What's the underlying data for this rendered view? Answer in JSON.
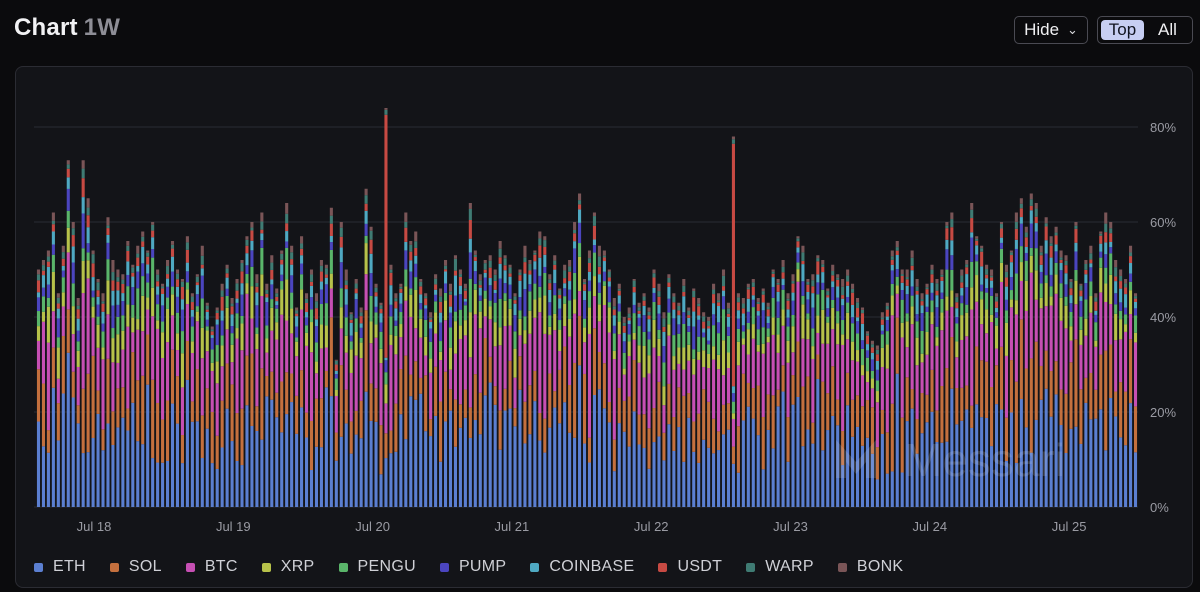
{
  "header": {
    "title": "Chart",
    "range": "1W",
    "hide_label": "Hide",
    "toggle": {
      "options": [
        "Top",
        "All"
      ],
      "selected": "Top"
    }
  },
  "watermark": "Messari",
  "colors": {
    "ETH": "#5b7fd1",
    "SOL": "#c4703e",
    "BTC": "#c64fb3",
    "XRP": "#b7c24a",
    "PENGU": "#5ab56a",
    "PUMP": "#4b45bf",
    "COINBASE": "#4fa9c2",
    "USDT": "#c74a43",
    "WARP": "#3f7b73",
    "BONK": "#7a5557"
  },
  "chart_data": {
    "type": "bar",
    "stacked": true,
    "x_ticks": [
      "Jul 18",
      "Jul 19",
      "Jul 20",
      "Jul 21",
      "Jul 22",
      "Jul 23",
      "Jul 24",
      "Jul 25"
    ],
    "y_ticks": [
      "0%",
      "20%",
      "40%",
      "60%",
      "80%"
    ],
    "ylim": [
      0,
      85
    ],
    "grid": "horizontal",
    "legend_position": "bottom",
    "series_order": [
      "ETH",
      "SOL",
      "BTC",
      "XRP",
      "PENGU",
      "PUMP",
      "COINBASE",
      "USDT",
      "WARP",
      "BONK"
    ],
    "bucket_hours": 1,
    "totals": [
      50,
      52,
      54,
      62,
      45,
      55,
      73,
      60,
      44,
      73,
      65,
      54,
      48,
      45,
      61,
      52,
      50,
      49,
      56,
      51,
      55,
      58,
      54,
      60,
      50,
      47,
      52,
      56,
      50,
      48,
      57,
      45,
      49,
      55,
      43,
      38,
      42,
      47,
      51,
      44,
      48,
      52,
      57,
      60,
      49,
      62,
      47,
      53,
      46,
      54,
      64,
      55,
      42,
      57,
      45,
      50,
      45,
      52,
      51,
      63,
      31,
      60,
      50,
      41,
      48,
      42,
      67,
      59,
      47,
      43,
      84,
      51,
      45,
      47,
      62,
      56,
      58,
      48,
      45,
      41,
      49,
      46,
      52,
      47,
      53,
      50,
      47,
      64,
      54,
      49,
      52,
      53,
      50,
      56,
      53,
      51,
      45,
      50,
      55,
      52,
      54,
      58,
      57,
      49,
      53,
      46,
      51,
      52,
      60,
      66,
      48,
      54,
      62,
      55,
      54,
      50,
      44,
      47,
      40,
      42,
      48,
      43,
      45,
      42,
      50,
      47,
      41,
      49,
      45,
      43,
      48,
      42,
      46,
      44,
      41,
      40,
      47,
      45,
      50,
      43,
      78,
      45,
      44,
      47,
      48,
      44,
      46,
      43,
      50,
      48,
      52,
      45,
      49,
      57,
      55,
      48,
      49,
      53,
      52,
      46,
      51,
      49,
      48,
      50,
      47,
      44,
      42,
      37,
      35,
      34,
      41,
      43,
      54,
      56,
      50,
      50,
      54,
      48,
      45,
      47,
      51,
      48,
      50,
      60,
      62,
      45,
      50,
      52,
      64,
      57,
      55,
      51,
      50,
      45,
      60,
      51,
      54,
      62,
      65,
      59,
      66,
      64,
      55,
      61,
      57,
      59,
      54,
      53,
      48,
      60,
      47,
      52,
      55,
      45,
      58,
      62,
      60,
      52,
      50,
      48,
      55,
      45
    ],
    "series_shares": {
      "ETH": 0.32,
      "SOL": 0.18,
      "BTC": 0.2,
      "XRP": 0.08,
      "PENGU": 0.06,
      "PUMP": 0.05,
      "COINBASE": 0.04,
      "USDT": 0.03,
      "WARP": 0.02,
      "BONK": 0.02
    }
  }
}
